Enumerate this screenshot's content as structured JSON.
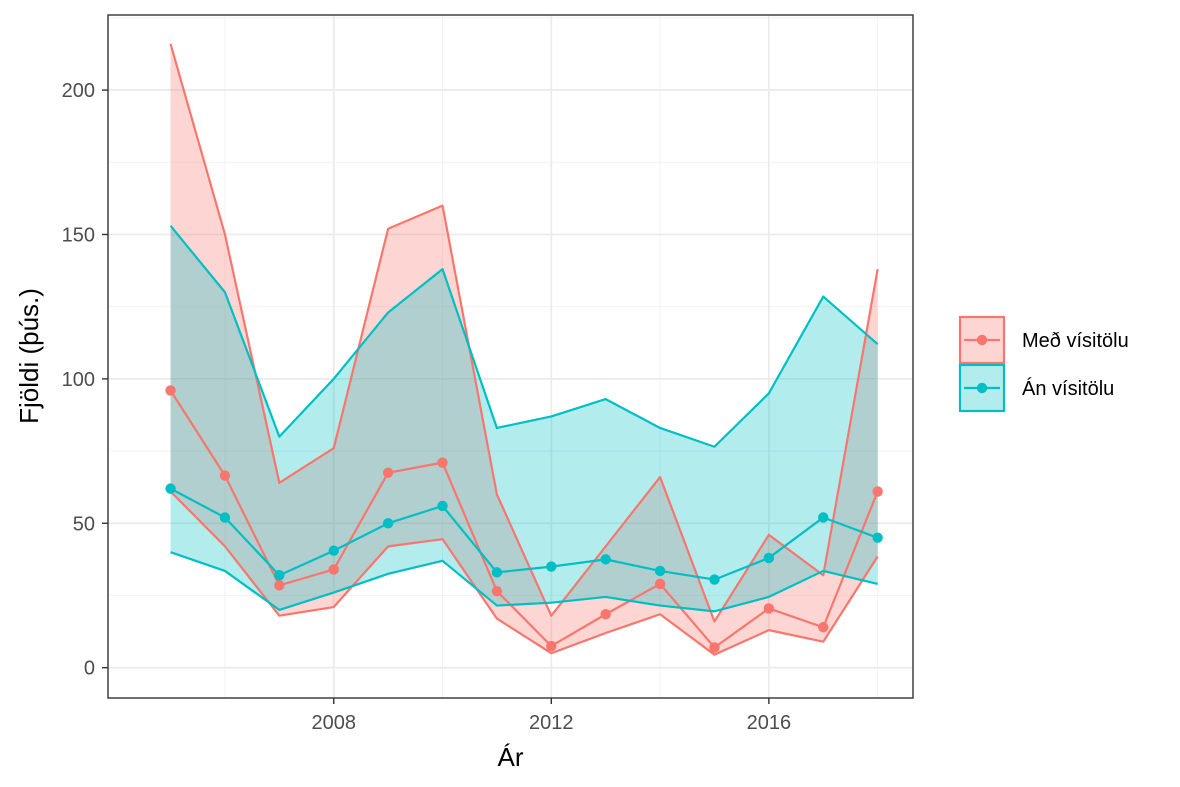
{
  "chart_data": {
    "type": "line",
    "title": "",
    "xlabel": "Ár",
    "ylabel": "Fjöldi (þús.)",
    "x": [
      2005,
      2006,
      2007,
      2008,
      2009,
      2010,
      2011,
      2012,
      2013,
      2014,
      2015,
      2016,
      2017,
      2018
    ],
    "xlim": [
      2003.85,
      2018.65
    ],
    "ylim": [
      -10.5,
      226
    ],
    "x_ticks": [
      2008,
      2012,
      2016
    ],
    "x_tick_labels": [
      "2008",
      "2012",
      "2016"
    ],
    "y_ticks": [
      0,
      50,
      100,
      150,
      200
    ],
    "y_tick_labels": [
      "0",
      "50",
      "100",
      "150",
      "200"
    ],
    "grid": true,
    "legend_position": "right",
    "series": [
      {
        "name": "Með vísitölu",
        "color": "#F8766D",
        "values": [
          96,
          66.5,
          28.5,
          34,
          67.5,
          71,
          26.5,
          7.5,
          18.5,
          29,
          7,
          20.5,
          14,
          61
        ],
        "lower": [
          61,
          42,
          18,
          21,
          42,
          44.5,
          17,
          5,
          12,
          18.5,
          4.5,
          13,
          9,
          38.5
        ],
        "upper": [
          216,
          150,
          64,
          76,
          152,
          160,
          60,
          18,
          42,
          66,
          16,
          46,
          32,
          138
        ]
      },
      {
        "name": "Án vísitölu",
        "color": "#00BFC4",
        "values": [
          62,
          52,
          32,
          40.5,
          50,
          56,
          33,
          35,
          37.5,
          33.5,
          30.5,
          38,
          52,
          45
        ],
        "lower": [
          40,
          33.5,
          20,
          26,
          32.5,
          37,
          21.5,
          22.5,
          24.5,
          21.5,
          19.5,
          24.5,
          33.5,
          29
        ],
        "upper": [
          153,
          130,
          80,
          100,
          123,
          138,
          83,
          87,
          93,
          83,
          76.5,
          95,
          128.5,
          112
        ]
      }
    ]
  }
}
